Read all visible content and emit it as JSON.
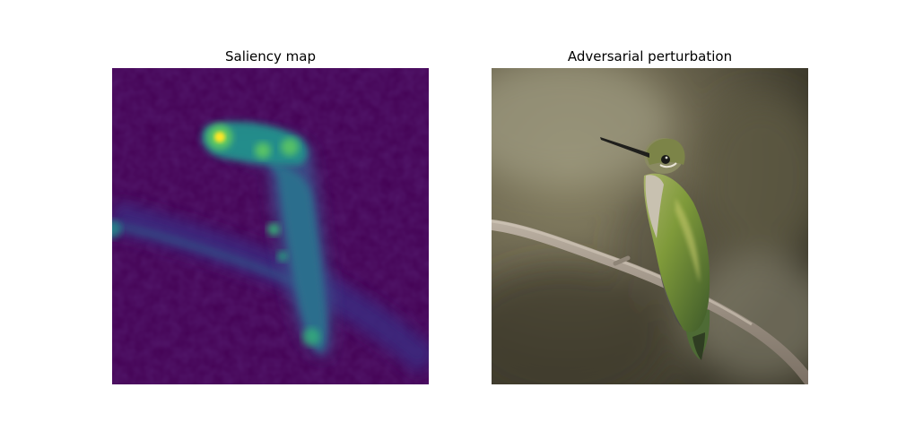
{
  "panels": [
    {
      "title": "Saliency map",
      "colormap": "viridis"
    },
    {
      "title": "Adversarial perturbation",
      "subject": "hummingbird perched on branch"
    }
  ],
  "colors": {
    "viridis_low": "#440154",
    "viridis_mid": "#21918c",
    "viridis_high": "#fde725"
  }
}
